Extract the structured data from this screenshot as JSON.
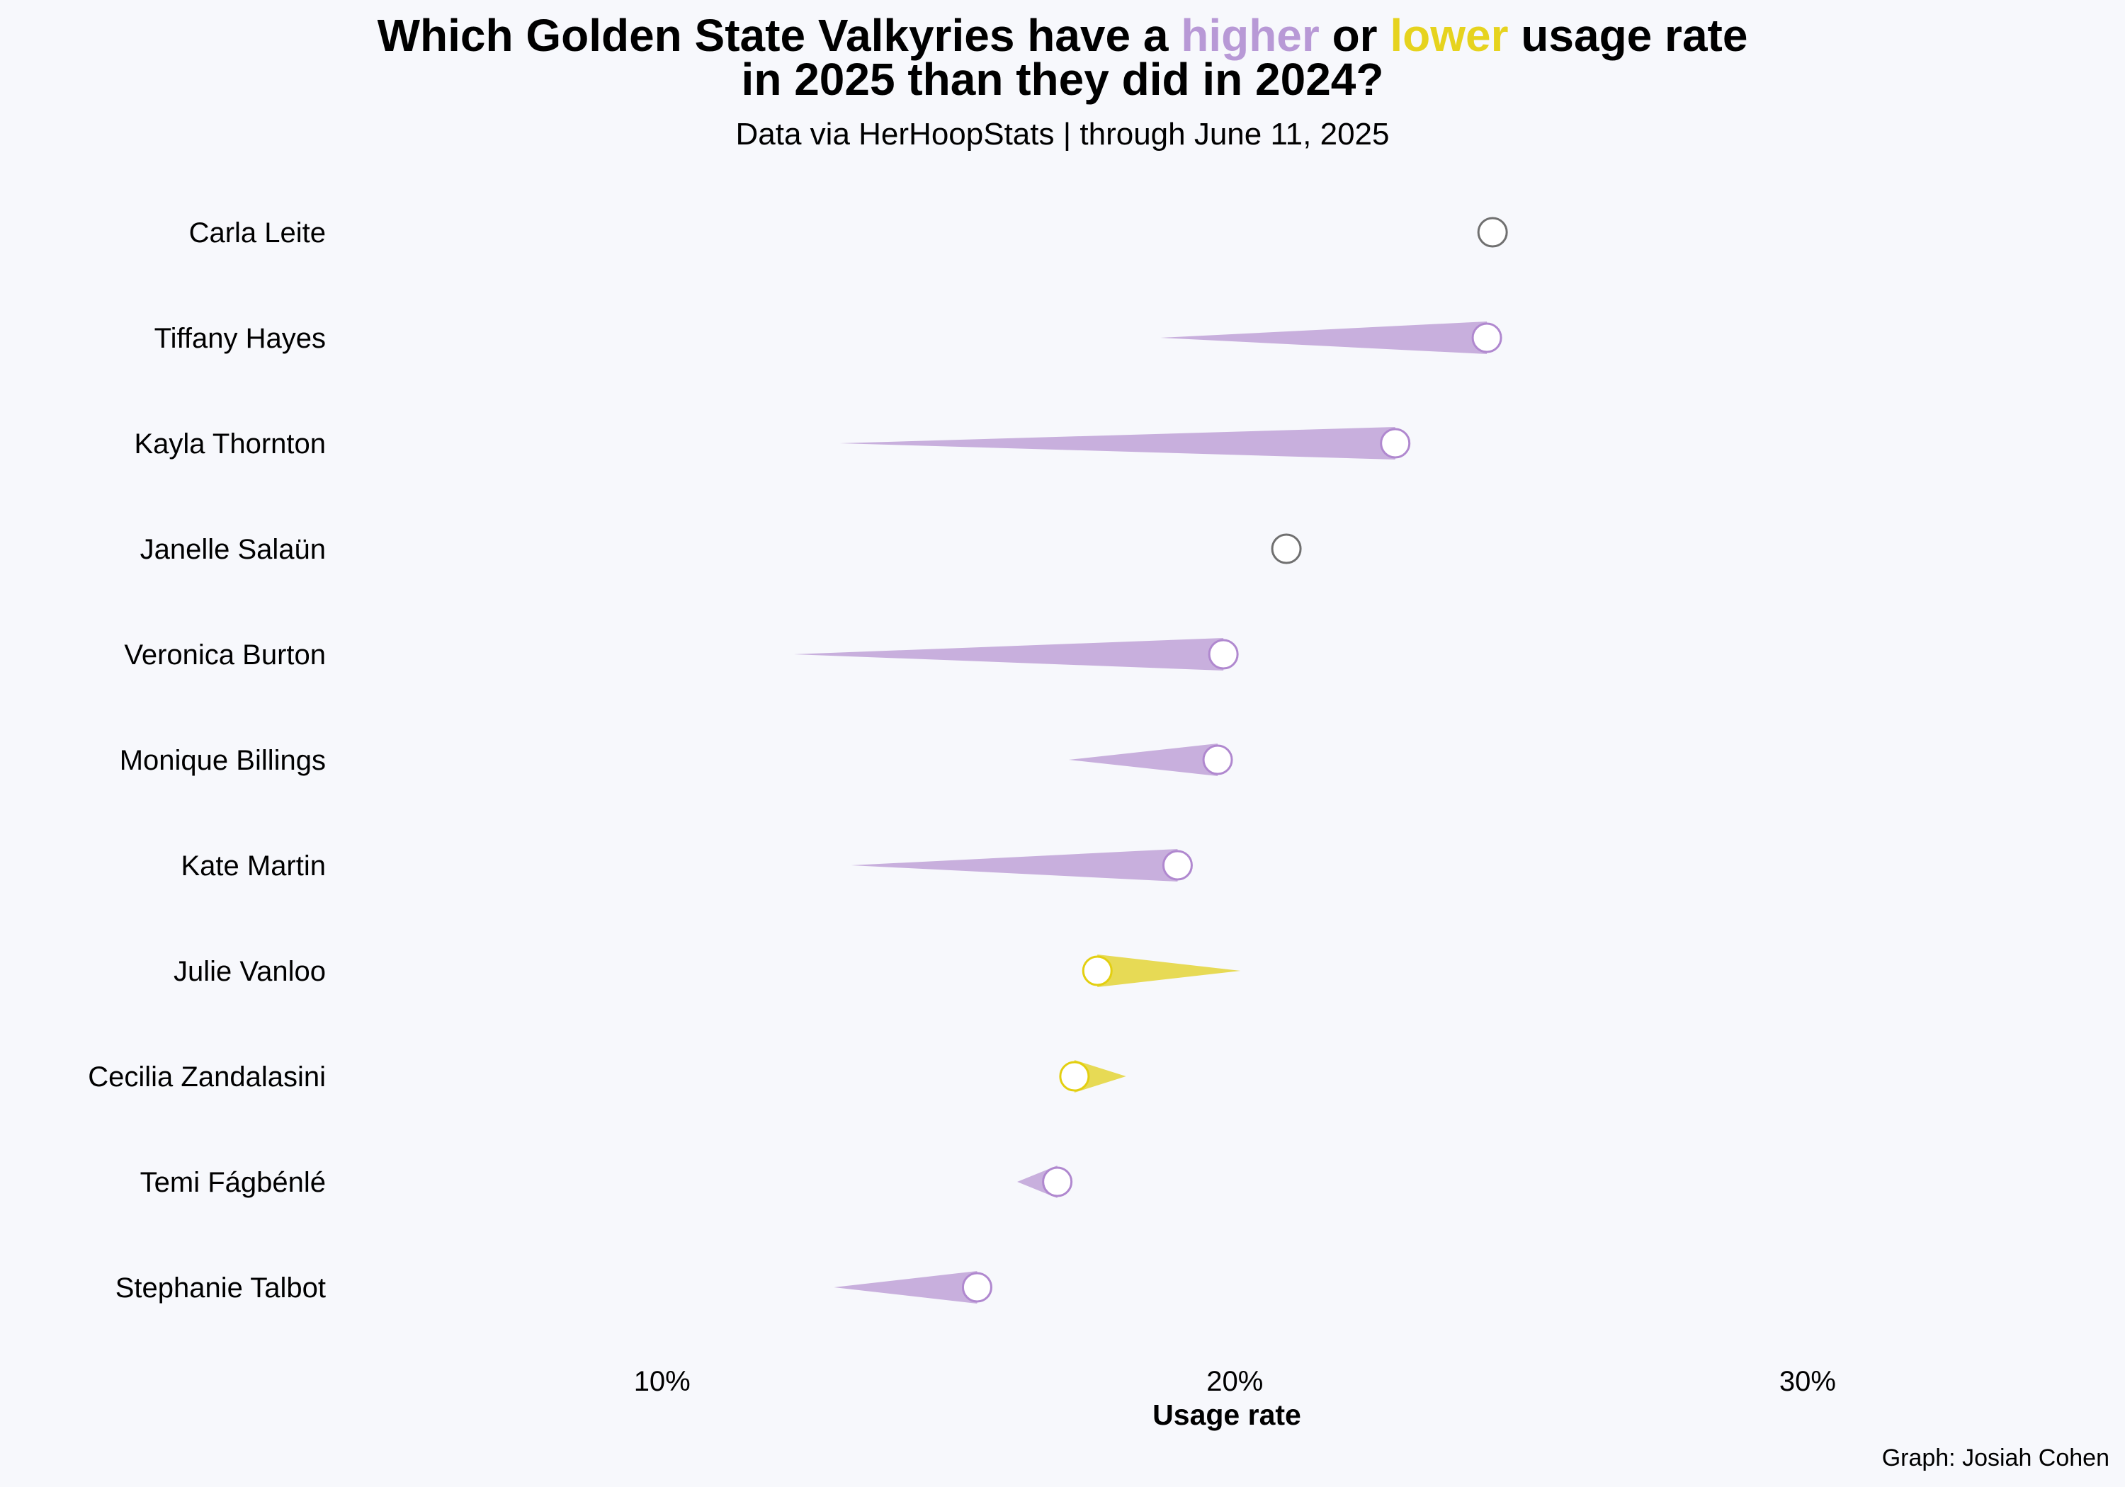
{
  "chart_data": {
    "type": "scatter",
    "title": {
      "line1_prefix": "Which Golden State Valkyries have a ",
      "higher_word": "higher",
      "middle": " or ",
      "lower_word": "lower",
      "line1_suffix": " usage rate",
      "line2": "in 2025 than they did in 2024?"
    },
    "subtitle": "Data via HerHoopStats  |  through June 11, 2025",
    "xlabel": "Usage rate",
    "caption": "Graph: Josiah Cohen",
    "xlim": [
      4.5,
      34.8
    ],
    "x_ticks": [
      10,
      20,
      30
    ],
    "x_tick_labels": [
      "10%",
      "20%",
      "30%"
    ],
    "grid": false,
    "colors": {
      "higher": "#c8afdd",
      "higher_outline": "#b088cf",
      "lower": "#e7da55",
      "lower_outline": "#e3cf10",
      "no_change_outline": "#707070",
      "background": "#f7f8fc"
    },
    "series": [
      {
        "name": "2024",
        "values": [
          null,
          18.7,
          13.1,
          null,
          12.3,
          17.1,
          13.3,
          20.1,
          18.1,
          16.2,
          13.0
        ]
      },
      {
        "name": "2025",
        "values": [
          24.5,
          24.4,
          22.8,
          20.9,
          19.8,
          19.7,
          19.0,
          17.6,
          17.2,
          16.9,
          15.5
        ]
      }
    ],
    "categories": [
      "Carla Leite",
      "Tiffany Hayes",
      "Kayla Thornton",
      "Janelle Salaün",
      "Veronica Burton",
      "Monique Billings",
      "Kate Martin",
      "Julie Vanloo",
      "Cecilia Zandalasini",
      "Temi Fágbénlé",
      "Stephanie Talbot"
    ]
  }
}
